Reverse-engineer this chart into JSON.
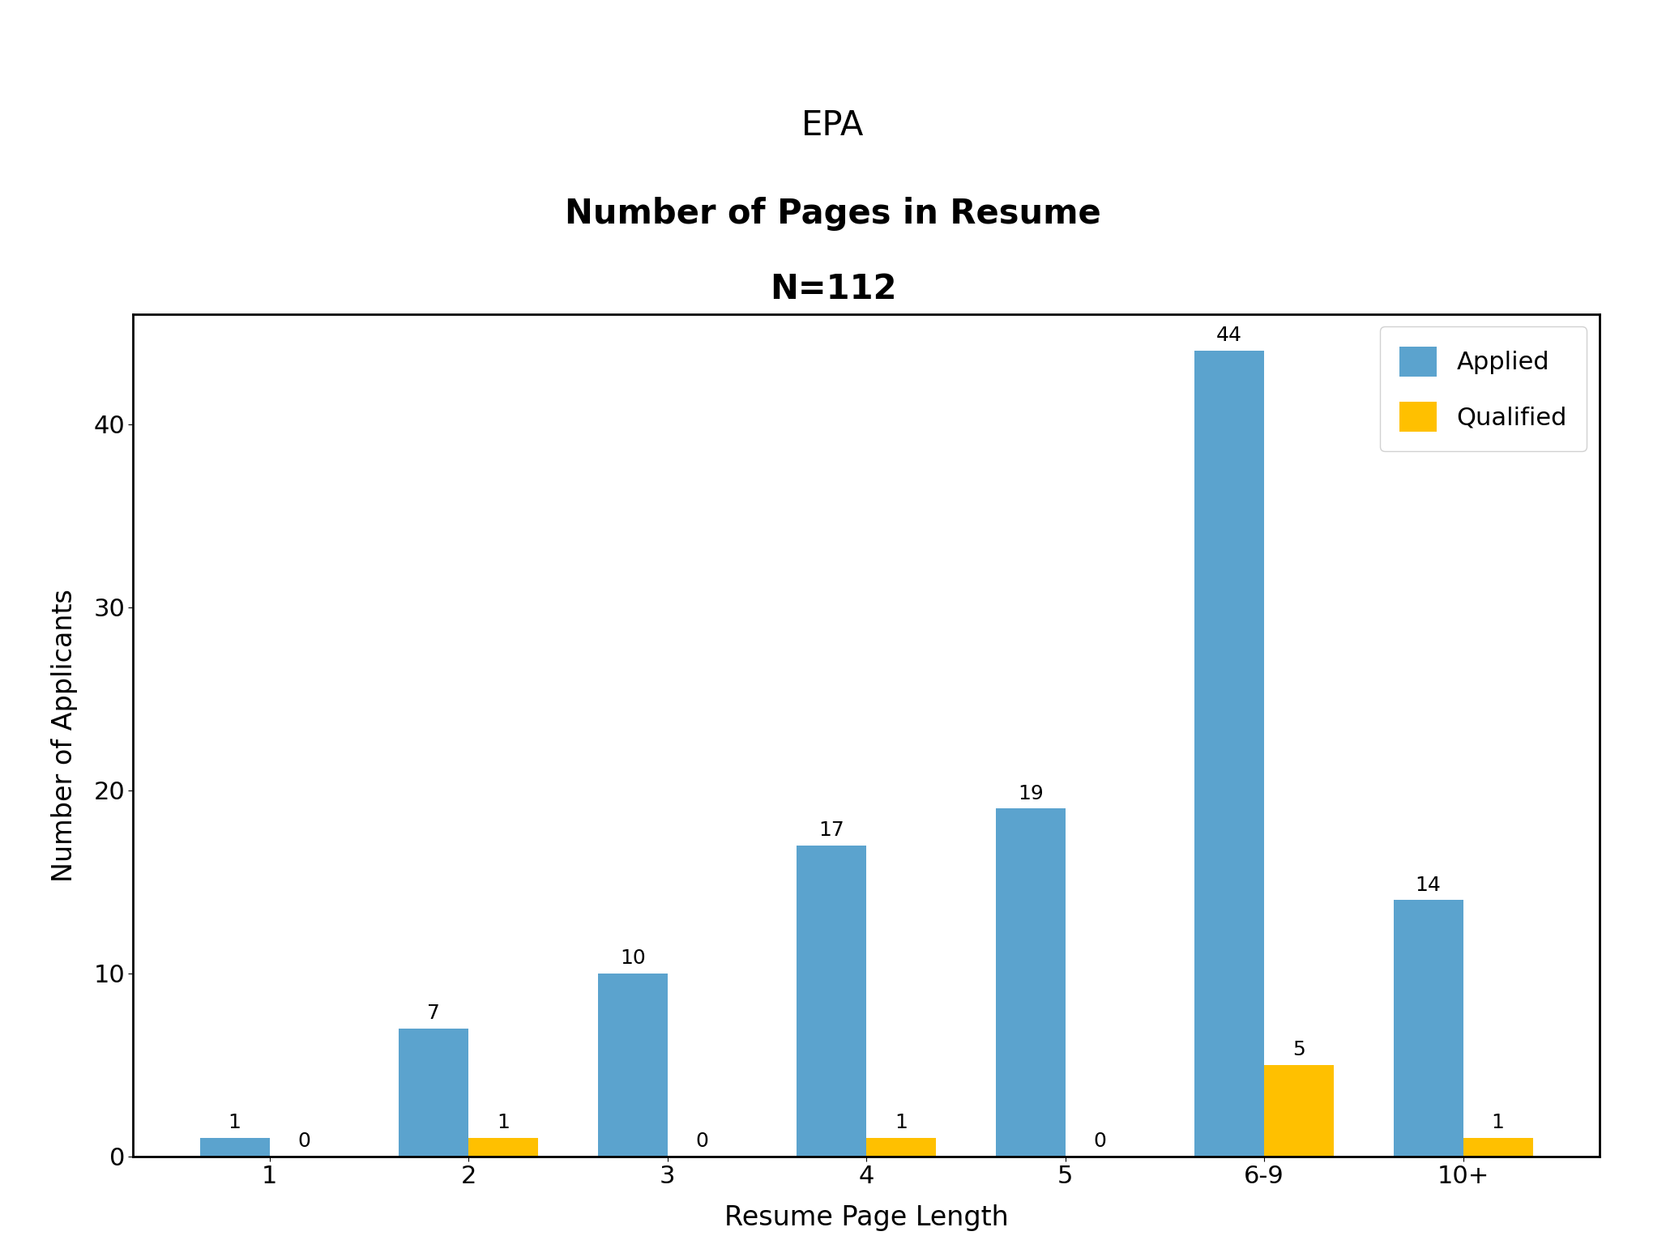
{
  "title_line1": "EPA",
  "title_line2": "Number of Pages in Resume",
  "title_line3": "N=112",
  "categories": [
    "1",
    "2",
    "3",
    "4",
    "5",
    "6-9",
    "10+"
  ],
  "applied_values": [
    1,
    7,
    10,
    17,
    19,
    44,
    14
  ],
  "qualified_values": [
    0,
    1,
    0,
    1,
    0,
    5,
    1
  ],
  "applied_color": "#5BA3CE",
  "qualified_color": "#FFC000",
  "xlabel": "Resume Page Length",
  "ylabel": "Number of Applicants",
  "ylim": [
    0,
    46
  ],
  "yticks": [
    0,
    10,
    20,
    30,
    40
  ],
  "legend_labels": [
    "Applied",
    "Qualified"
  ],
  "bar_width": 0.35,
  "title_fontsize": 30,
  "axis_label_fontsize": 24,
  "tick_fontsize": 22,
  "legend_fontsize": 22,
  "annotation_fontsize": 18,
  "background_color": "#ffffff",
  "figure_bg": "#ffffff"
}
